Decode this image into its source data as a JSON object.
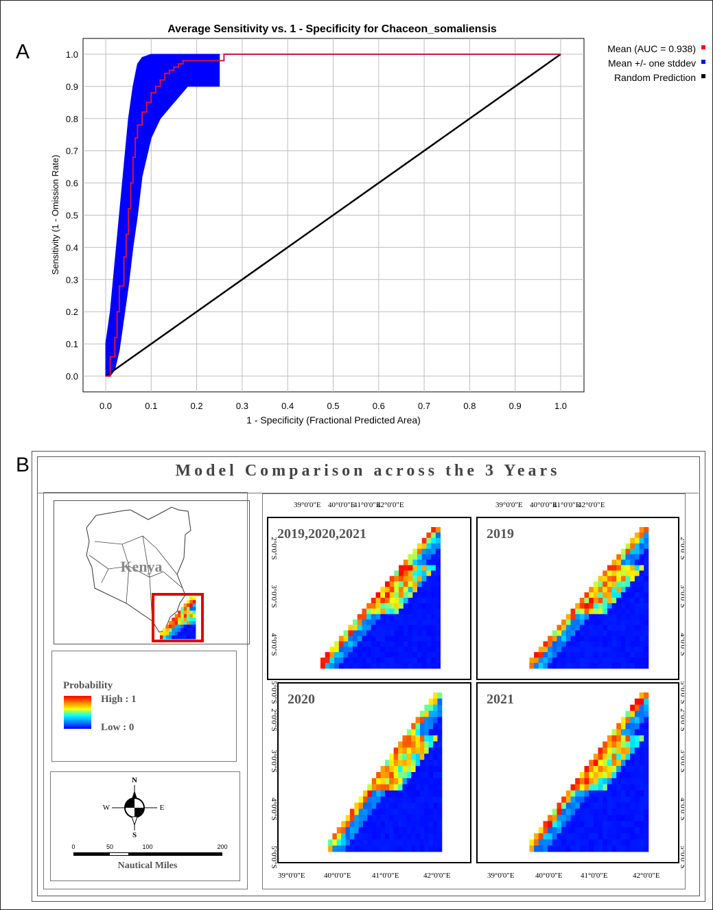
{
  "panels": {
    "a_label": "A",
    "b_label": "B"
  },
  "chart_data": [
    {
      "type": "line",
      "title": "Average Sensitivity vs. 1 - Specificity for Chaceon_somaliensis",
      "xlabel": "1 - Specificity (Fractional Predicted Area)",
      "ylabel": "Sensitivity (1 - Omission Rate)",
      "xlim": [
        0.0,
        1.0
      ],
      "ylim": [
        0.0,
        1.0
      ],
      "x_ticks": [
        "0.0",
        "0.1",
        "0.2",
        "0.3",
        "0.4",
        "0.5",
        "0.6",
        "0.7",
        "0.8",
        "0.9",
        "1.0"
      ],
      "y_ticks": [
        "0.0",
        "0.1",
        "0.2",
        "0.3",
        "0.4",
        "0.5",
        "0.6",
        "0.7",
        "0.8",
        "0.9",
        "1.0"
      ],
      "grid": true,
      "legend_position": "right",
      "series": [
        {
          "name": "Mean (AUC = 0.938)",
          "color": "#ff0000",
          "x": [
            0.0,
            0.01,
            0.02,
            0.025,
            0.03,
            0.04,
            0.045,
            0.05,
            0.055,
            0.06,
            0.065,
            0.07,
            0.08,
            0.09,
            0.1,
            0.11,
            0.12,
            0.13,
            0.14,
            0.15,
            0.16,
            0.17,
            0.2,
            0.25,
            0.26,
            1.0
          ],
          "y": [
            0.0,
            0.06,
            0.12,
            0.2,
            0.28,
            0.37,
            0.44,
            0.52,
            0.6,
            0.68,
            0.74,
            0.78,
            0.82,
            0.85,
            0.88,
            0.9,
            0.92,
            0.94,
            0.95,
            0.96,
            0.97,
            0.98,
            0.98,
            0.98,
            1.0,
            1.0
          ]
        },
        {
          "name": "Mean +/- one stddev",
          "color": "#0000ff",
          "x": [
            0.0,
            0.01,
            0.02,
            0.03,
            0.04,
            0.05,
            0.06,
            0.07,
            0.08,
            0.1,
            0.12,
            0.15,
            0.18,
            0.2,
            0.25
          ],
          "y_upper": [
            0.1,
            0.2,
            0.35,
            0.5,
            0.65,
            0.8,
            0.9,
            0.97,
            0.99,
            1.0,
            1.0,
            1.0,
            1.0,
            1.0,
            1.0
          ],
          "y_lower": [
            0.0,
            0.0,
            0.02,
            0.08,
            0.18,
            0.28,
            0.4,
            0.5,
            0.62,
            0.74,
            0.8,
            0.85,
            0.9,
            0.9,
            0.9
          ]
        },
        {
          "name": "Random Prediction",
          "color": "#000000",
          "x": [
            0.0,
            1.0
          ],
          "y": [
            0.0,
            1.0
          ]
        }
      ]
    },
    {
      "type": "heatmap",
      "title": "Model Comparison across the 3 Years",
      "maps": [
        "2019,2020,2021",
        "2019",
        "2020",
        "2021"
      ],
      "lon_ticks": [
        "39°0'0\"E",
        "40°0'0\"E",
        "41°0'0\"E",
        "42°0'0\"E"
      ],
      "lat_ticks": [
        "2°0'0\"S",
        "3°0'0\"S",
        "4°0'0\"S",
        "5°0'0\"S"
      ],
      "color_scale": [
        "#0000ff",
        "#00ffff",
        "#ffff00",
        "#ff0000"
      ]
    }
  ],
  "inset": {
    "country_label": "Kenya"
  },
  "legend": {
    "title": "Probability",
    "high": "High : 1",
    "low": "Low : 0"
  },
  "compass": {
    "n": "N",
    "s": "S",
    "e": "E",
    "w": "W"
  },
  "scale_bar": {
    "ticks": [
      "0",
      "50",
      "100",
      "200"
    ],
    "unit": "Nautical Miles"
  }
}
